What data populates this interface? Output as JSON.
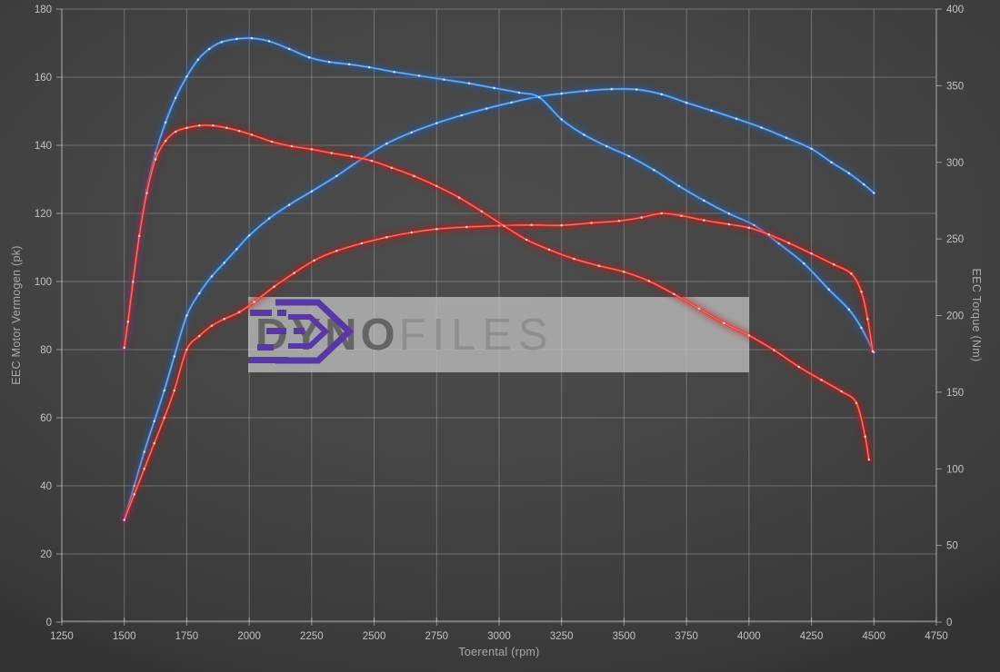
{
  "watermark": {
    "brand_dyno": "Dyno",
    "brand_files": "Files",
    "logo_color": "#5838a6",
    "panel_color": "rgba(200,200,200,0.72)"
  },
  "chart_data": {
    "type": "line",
    "title": "",
    "xlabel": "Toerental (rpm)",
    "ylabel_left": "EEC Motor Vermogen (pk)",
    "ylabel_right": "EEC Torque (Nm)",
    "x_range": [
      1250,
      4750
    ],
    "y_left_range": [
      0,
      180
    ],
    "y_right_range": [
      0,
      400
    ],
    "grid": true,
    "legend_position": "none",
    "x_ticks": [
      1250,
      1500,
      1750,
      2000,
      2250,
      2500,
      2750,
      3000,
      3250,
      3500,
      3750,
      4000,
      4250,
      4500,
      4750
    ],
    "y_left_ticks": [
      0,
      20,
      40,
      60,
      80,
      100,
      120,
      140,
      160,
      180
    ],
    "y_right_ticks": [
      0,
      50,
      100,
      150,
      200,
      250,
      300,
      350,
      400
    ],
    "series": [
      {
        "name": "blue-power-pk",
        "axis": "left",
        "unit": "pk",
        "color": "#3f87d6",
        "glow": "#1d5fb4",
        "dot": "#d9eafc",
        "points": [
          [
            1500,
            30
          ],
          [
            1540,
            40
          ],
          [
            1580,
            50
          ],
          [
            1620,
            59
          ],
          [
            1660,
            68
          ],
          [
            1700,
            78
          ],
          [
            1750,
            90
          ],
          [
            1800,
            96.5
          ],
          [
            1850,
            101.5
          ],
          [
            1900,
            105.5
          ],
          [
            1950,
            109.5
          ],
          [
            2000,
            113.5
          ],
          [
            2080,
            118.5
          ],
          [
            2160,
            122.5
          ],
          [
            2250,
            126.5
          ],
          [
            2350,
            131
          ],
          [
            2450,
            136
          ],
          [
            2550,
            140.5
          ],
          [
            2650,
            143.8
          ],
          [
            2750,
            146.5
          ],
          [
            2850,
            148.8
          ],
          [
            2950,
            150.8
          ],
          [
            3050,
            152.6
          ],
          [
            3150,
            154.2
          ],
          [
            3250,
            155.2
          ],
          [
            3350,
            156
          ],
          [
            3450,
            156.5
          ],
          [
            3550,
            156.4
          ],
          [
            3650,
            155
          ],
          [
            3750,
            152.5
          ],
          [
            3850,
            150.2
          ],
          [
            3950,
            147.8
          ],
          [
            4050,
            145.2
          ],
          [
            4150,
            142.2
          ],
          [
            4250,
            139
          ],
          [
            4330,
            135
          ],
          [
            4400,
            131.8
          ],
          [
            4460,
            128.5
          ],
          [
            4500,
            126
          ]
        ]
      },
      {
        "name": "blue-torque-nm",
        "axis": "right",
        "unit": "Nm",
        "color": "#3f87d6",
        "glow": "#1d5fb4",
        "dot": "#d9eafc",
        "points": [
          [
            1500,
            179
          ],
          [
            1515,
            196
          ],
          [
            1535,
            222
          ],
          [
            1560,
            252
          ],
          [
            1590,
            282
          ],
          [
            1625,
            306
          ],
          [
            1665,
            326
          ],
          [
            1705,
            342
          ],
          [
            1750,
            356
          ],
          [
            1795,
            367
          ],
          [
            1840,
            374
          ],
          [
            1890,
            378.5
          ],
          [
            1950,
            380.5
          ],
          [
            2010,
            381
          ],
          [
            2080,
            379
          ],
          [
            2160,
            374
          ],
          [
            2240,
            368.5
          ],
          [
            2320,
            365.5
          ],
          [
            2400,
            364
          ],
          [
            2480,
            362
          ],
          [
            2580,
            359
          ],
          [
            2680,
            356.5
          ],
          [
            2780,
            354
          ],
          [
            2880,
            351.5
          ],
          [
            2980,
            348.5
          ],
          [
            3080,
            345.5
          ],
          [
            3160,
            342.5
          ],
          [
            3250,
            328
          ],
          [
            3340,
            318
          ],
          [
            3430,
            310.5
          ],
          [
            3520,
            304
          ],
          [
            3620,
            295
          ],
          [
            3720,
            284.5
          ],
          [
            3820,
            275
          ],
          [
            3920,
            266.5
          ],
          [
            4020,
            259
          ],
          [
            4120,
            247
          ],
          [
            4220,
            234
          ],
          [
            4320,
            217
          ],
          [
            4400,
            204
          ],
          [
            4450,
            192
          ],
          [
            4500,
            176
          ]
        ]
      },
      {
        "name": "red-power-pk",
        "axis": "left",
        "unit": "pk",
        "color": "#e8362a",
        "glow": "#bd1717",
        "dot": "#ffddd2",
        "points": [
          [
            1500,
            30
          ],
          [
            1540,
            37.5
          ],
          [
            1580,
            45
          ],
          [
            1620,
            52.5
          ],
          [
            1660,
            60
          ],
          [
            1700,
            68
          ],
          [
            1750,
            80
          ],
          [
            1800,
            84
          ],
          [
            1850,
            87
          ],
          [
            1900,
            89
          ],
          [
            1960,
            91
          ],
          [
            2020,
            94
          ],
          [
            2100,
            98.5
          ],
          [
            2180,
            102.5
          ],
          [
            2260,
            106.2
          ],
          [
            2350,
            109
          ],
          [
            2450,
            111.2
          ],
          [
            2550,
            113
          ],
          [
            2650,
            114.4
          ],
          [
            2750,
            115.4
          ],
          [
            2870,
            116
          ],
          [
            3000,
            116.4
          ],
          [
            3130,
            116.6
          ],
          [
            3250,
            116.5
          ],
          [
            3370,
            117.2
          ],
          [
            3480,
            117.8
          ],
          [
            3570,
            118.8
          ],
          [
            3650,
            120
          ],
          [
            3730,
            119.3
          ],
          [
            3820,
            118
          ],
          [
            3920,
            116.8
          ],
          [
            4000,
            115.8
          ],
          [
            4080,
            113.8
          ],
          [
            4160,
            111.3
          ],
          [
            4250,
            108.2
          ],
          [
            4340,
            105
          ],
          [
            4410,
            102.3
          ],
          [
            4450,
            97
          ],
          [
            4475,
            89
          ],
          [
            4495,
            79.5
          ]
        ]
      },
      {
        "name": "red-torque-nm",
        "axis": "right",
        "unit": "Nm",
        "color": "#e8362a",
        "glow": "#bd1717",
        "dot": "#ffddd2",
        "points": [
          [
            1500,
            179
          ],
          [
            1515,
            196
          ],
          [
            1535,
            222
          ],
          [
            1560,
            252
          ],
          [
            1590,
            280
          ],
          [
            1625,
            302
          ],
          [
            1665,
            314
          ],
          [
            1705,
            320
          ],
          [
            1750,
            322.5
          ],
          [
            1800,
            324
          ],
          [
            1855,
            324
          ],
          [
            1910,
            322.5
          ],
          [
            1960,
            320.5
          ],
          [
            2010,
            318
          ],
          [
            2090,
            313.5
          ],
          [
            2170,
            310.5
          ],
          [
            2250,
            308.5
          ],
          [
            2330,
            306
          ],
          [
            2410,
            303.8
          ],
          [
            2490,
            301
          ],
          [
            2570,
            296.5
          ],
          [
            2660,
            291
          ],
          [
            2750,
            284.5
          ],
          [
            2840,
            277
          ],
          [
            2930,
            268
          ],
          [
            3020,
            258.5
          ],
          [
            3110,
            249.5
          ],
          [
            3200,
            243
          ],
          [
            3300,
            237
          ],
          [
            3400,
            232.5
          ],
          [
            3500,
            228.5
          ],
          [
            3600,
            222.5
          ],
          [
            3700,
            214
          ],
          [
            3800,
            204.5
          ],
          [
            3900,
            195
          ],
          [
            4000,
            187
          ],
          [
            4100,
            177.5
          ],
          [
            4200,
            166.5
          ],
          [
            4290,
            158
          ],
          [
            4370,
            150.5
          ],
          [
            4430,
            143
          ],
          [
            4465,
            121
          ],
          [
            4480,
            106
          ]
        ]
      }
    ]
  },
  "layout_colors": {
    "gridline": "rgba(214,214,214,0.32)",
    "axis_line": "rgba(235,235,235,0.5)",
    "tick_text": "#c3c3c3"
  }
}
